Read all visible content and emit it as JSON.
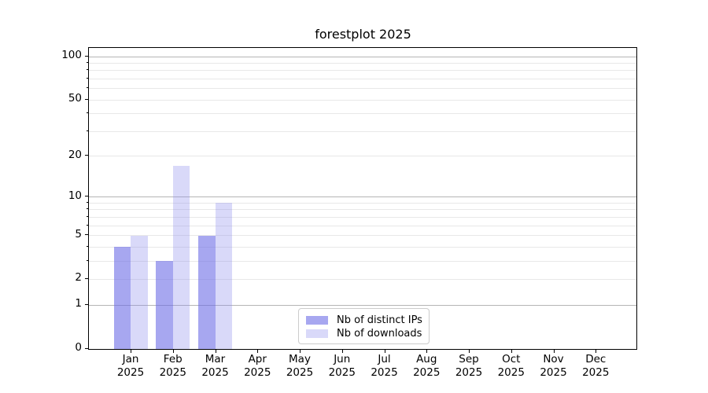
{
  "chart_data": {
    "type": "bar",
    "title": "forestplot 2025",
    "x_categories": [
      "Jan",
      "Feb",
      "Mar",
      "Apr",
      "May",
      "Jun",
      "Jul",
      "Aug",
      "Sep",
      "Oct",
      "Nov",
      "Dec"
    ],
    "x_category_year": "2025",
    "series": [
      {
        "name": "Nb of distinct IPs",
        "color": "rgba(108,108,230,0.6)",
        "color_on_white": "#a7a7f0",
        "values": [
          4,
          3,
          5,
          0,
          0,
          0,
          0,
          0,
          0,
          0,
          0,
          0
        ]
      },
      {
        "name": "Nb of downloads",
        "color": "rgba(138,138,235,0.32)",
        "color_on_white": "#dcdcf9",
        "values": [
          5,
          17,
          9,
          0,
          0,
          0,
          0,
          0,
          0,
          0,
          0,
          0
        ]
      }
    ],
    "yscale": "log1p",
    "ylim": [
      0,
      115
    ],
    "y_tick_labels": [
      0,
      1,
      2,
      5,
      10,
      20,
      50,
      100
    ],
    "y_grid_major": [
      1,
      10,
      100
    ],
    "y_grid_minor": [
      2,
      3,
      4,
      5,
      6,
      7,
      8,
      9,
      20,
      30,
      40,
      50,
      60,
      70,
      80,
      90
    ],
    "grid_major_color": "#b5b5b5",
    "grid_minor_color": "#e8e8e8",
    "legend_position": "lower center",
    "text_color": "#000000"
  }
}
